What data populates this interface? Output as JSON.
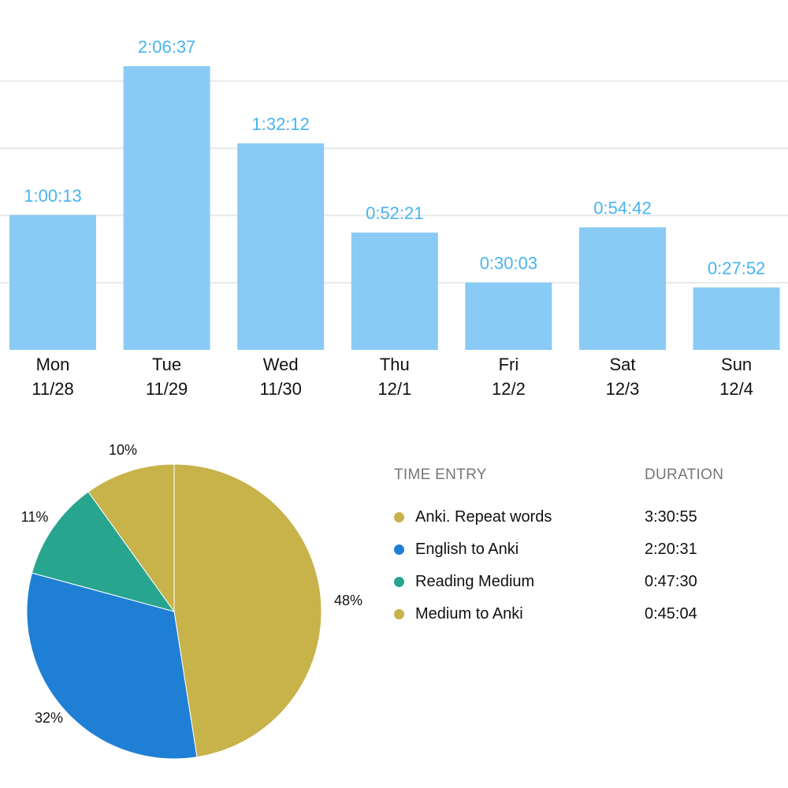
{
  "chart_data": [
    {
      "type": "bar",
      "title": "",
      "xlabel": "",
      "ylabel": "",
      "categories": [
        "Mon",
        "Tue",
        "Wed",
        "Thu",
        "Fri",
        "Sat",
        "Sun"
      ],
      "dates": [
        "11/28",
        "11/29",
        "11/30",
        "12/1",
        "12/2",
        "12/3",
        "12/4"
      ],
      "value_labels": [
        "1:00:13",
        "2:06:37",
        "1:32:12",
        "0:52:21",
        "0:30:03",
        "0:54:42",
        "0:27:52"
      ],
      "values_seconds": [
        3613,
        7597,
        5532,
        3141,
        1803,
        3282,
        1672
      ],
      "ylim_seconds": [
        0,
        9000
      ],
      "gridlines_every_seconds": 1800,
      "color": "#89cbf5",
      "label_color": "#47b4f0"
    },
    {
      "type": "pie",
      "start": "12 o'clock",
      "direction": "clockwise",
      "slices": [
        {
          "name": "Anki. Repeat words",
          "value": 48,
          "label": "48%",
          "color": "#c8b24a"
        },
        {
          "name": "English to Anki",
          "value": 32,
          "label": "32%",
          "color": "#1f7fd4"
        },
        {
          "name": "Reading Medium",
          "value": 11,
          "label": "11%",
          "color": "#27a58f"
        },
        {
          "name": "Medium to Anki",
          "value": 10,
          "label": "10%",
          "color": "#c8b24a"
        }
      ]
    }
  ],
  "legend": {
    "header_entry": "TIME ENTRY",
    "header_duration": "DURATION",
    "rows": [
      {
        "name": "Anki. Repeat words",
        "duration": "3:30:55",
        "color": "#c8b24a"
      },
      {
        "name": "English to Anki",
        "duration": "2:20:31",
        "color": "#1f7fd4"
      },
      {
        "name": "Reading Medium",
        "duration": "0:47:30",
        "color": "#27a58f"
      },
      {
        "name": "Medium to Anki",
        "duration": "0:45:04",
        "color": "#c8b24a"
      }
    ]
  }
}
